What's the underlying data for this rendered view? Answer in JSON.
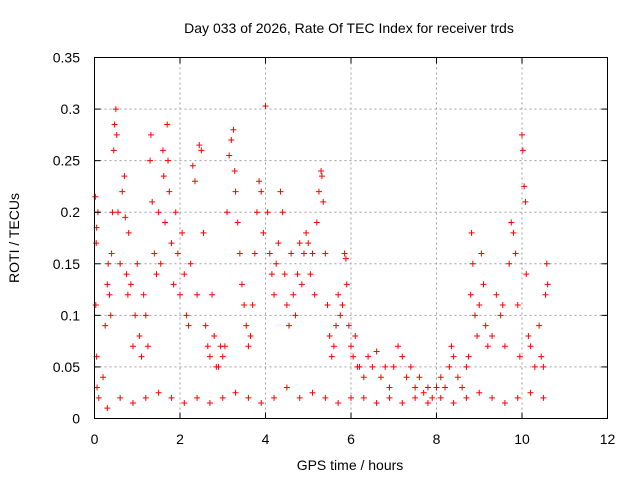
{
  "chart_data": {
    "type": "scatter",
    "title": "Day 033 of 2026, Rate Of TEC Index for receiver trds",
    "xlabel": "GPS time / hours",
    "ylabel": "ROTI / TECUs",
    "xlim": [
      0,
      12
    ],
    "ylim": [
      0,
      0.35
    ],
    "x_ticks": [
      0,
      2,
      4,
      6,
      8,
      10,
      12
    ],
    "x_tick_labels": [
      "0",
      "2",
      "4",
      "6",
      "8",
      "10",
      "12"
    ],
    "y_ticks": [
      0,
      0.05,
      0.1,
      0.15,
      0.2,
      0.25,
      0.3,
      0.35
    ],
    "y_tick_labels": [
      "0",
      "0.05",
      "0.1",
      "0.15",
      "0.2",
      "0.25",
      "0.3",
      "0.35"
    ],
    "grid": true,
    "marker": "plus",
    "color": "#ff0000",
    "series": [
      {
        "name": "",
        "points": [
          [
            0.02,
            0.215
          ],
          [
            0.05,
            0.185
          ],
          [
            0.04,
            0.17
          ],
          [
            0.08,
            0.2
          ],
          [
            0.03,
            0.11
          ],
          [
            0.05,
            0.06
          ],
          [
            0.06,
            0.03
          ],
          [
            0.1,
            0.02
          ],
          [
            0.2,
            0.04
          ],
          [
            0.25,
            0.09
          ],
          [
            0.3,
            0.13
          ],
          [
            0.32,
            0.15
          ],
          [
            0.35,
            0.12
          ],
          [
            0.38,
            0.1
          ],
          [
            0.4,
            0.16
          ],
          [
            0.42,
            0.2
          ],
          [
            0.45,
            0.26
          ],
          [
            0.47,
            0.285
          ],
          [
            0.5,
            0.3
          ],
          [
            0.52,
            0.275
          ],
          [
            0.55,
            0.2
          ],
          [
            0.6,
            0.15
          ],
          [
            0.65,
            0.22
          ],
          [
            0.7,
            0.235
          ],
          [
            0.72,
            0.195
          ],
          [
            0.75,
            0.14
          ],
          [
            0.78,
            0.12
          ],
          [
            0.8,
            0.18
          ],
          [
            0.85,
            0.13
          ],
          [
            0.9,
            0.07
          ],
          [
            0.95,
            0.1
          ],
          [
            1.0,
            0.15
          ],
          [
            1.05,
            0.08
          ],
          [
            1.1,
            0.06
          ],
          [
            1.15,
            0.12
          ],
          [
            1.2,
            0.1
          ],
          [
            1.25,
            0.07
          ],
          [
            1.3,
            0.25
          ],
          [
            1.32,
            0.275
          ],
          [
            1.35,
            0.21
          ],
          [
            1.4,
            0.16
          ],
          [
            1.45,
            0.14
          ],
          [
            1.5,
            0.2
          ],
          [
            1.55,
            0.15
          ],
          [
            1.6,
            0.26
          ],
          [
            1.62,
            0.235
          ],
          [
            1.65,
            0.19
          ],
          [
            1.7,
            0.285
          ],
          [
            1.72,
            0.25
          ],
          [
            1.75,
            0.22
          ],
          [
            1.8,
            0.17
          ],
          [
            1.85,
            0.13
          ],
          [
            1.9,
            0.2
          ],
          [
            1.95,
            0.16
          ],
          [
            2.0,
            0.12
          ],
          [
            2.05,
            0.18
          ],
          [
            2.1,
            0.14
          ],
          [
            2.15,
            0.1
          ],
          [
            2.2,
            0.09
          ],
          [
            2.25,
            0.15
          ],
          [
            2.3,
            0.245
          ],
          [
            2.35,
            0.23
          ],
          [
            2.4,
            0.12
          ],
          [
            2.45,
            0.265
          ],
          [
            2.5,
            0.26
          ],
          [
            2.55,
            0.18
          ],
          [
            2.6,
            0.09
          ],
          [
            2.65,
            0.07
          ],
          [
            2.7,
            0.06
          ],
          [
            2.75,
            0.12
          ],
          [
            2.8,
            0.08
          ],
          [
            2.85,
            0.05
          ],
          [
            2.9,
            0.05
          ],
          [
            2.95,
            0.07
          ],
          [
            3.0,
            0.06
          ],
          [
            3.05,
            0.07
          ],
          [
            3.1,
            0.2
          ],
          [
            3.15,
            0.255
          ],
          [
            3.2,
            0.27
          ],
          [
            3.25,
            0.28
          ],
          [
            3.28,
            0.24
          ],
          [
            3.3,
            0.22
          ],
          [
            3.35,
            0.19
          ],
          [
            3.4,
            0.16
          ],
          [
            3.45,
            0.13
          ],
          [
            3.5,
            0.11
          ],
          [
            3.55,
            0.09
          ],
          [
            3.6,
            0.07
          ],
          [
            3.65,
            0.08
          ],
          [
            3.7,
            0.11
          ],
          [
            3.75,
            0.16
          ],
          [
            3.8,
            0.2
          ],
          [
            3.85,
            0.23
          ],
          [
            3.9,
            0.22
          ],
          [
            3.95,
            0.18
          ],
          [
            4.0,
            0.303
          ],
          [
            4.05,
            0.2
          ],
          [
            4.1,
            0.16
          ],
          [
            4.15,
            0.14
          ],
          [
            4.2,
            0.12
          ],
          [
            4.25,
            0.15
          ],
          [
            4.3,
            0.17
          ],
          [
            4.35,
            0.22
          ],
          [
            4.4,
            0.2
          ],
          [
            4.45,
            0.14
          ],
          [
            4.5,
            0.11
          ],
          [
            4.55,
            0.09
          ],
          [
            4.6,
            0.16
          ],
          [
            4.65,
            0.12
          ],
          [
            4.7,
            0.1
          ],
          [
            4.75,
            0.14
          ],
          [
            4.8,
            0.17
          ],
          [
            4.85,
            0.13
          ],
          [
            4.9,
            0.16
          ],
          [
            4.95,
            0.18
          ],
          [
            5.0,
            0.17
          ],
          [
            5.05,
            0.14
          ],
          [
            5.1,
            0.16
          ],
          [
            5.15,
            0.12
          ],
          [
            5.2,
            0.19
          ],
          [
            5.25,
            0.22
          ],
          [
            5.3,
            0.24
          ],
          [
            5.32,
            0.235
          ],
          [
            5.35,
            0.21
          ],
          [
            5.4,
            0.16
          ],
          [
            5.45,
            0.11
          ],
          [
            5.5,
            0.08
          ],
          [
            5.55,
            0.06
          ],
          [
            5.6,
            0.07
          ],
          [
            5.65,
            0.09
          ],
          [
            5.7,
            0.12
          ],
          [
            5.75,
            0.1
          ],
          [
            5.8,
            0.11
          ],
          [
            5.85,
            0.16
          ],
          [
            5.88,
            0.155
          ],
          [
            5.9,
            0.13
          ],
          [
            5.95,
            0.09
          ],
          [
            6.0,
            0.07
          ],
          [
            6.05,
            0.06
          ],
          [
            6.1,
            0.08
          ],
          [
            6.15,
            0.05
          ],
          [
            6.2,
            0.05
          ],
          [
            6.3,
            0.04
          ],
          [
            6.4,
            0.06
          ],
          [
            6.5,
            0.05
          ],
          [
            6.6,
            0.065
          ],
          [
            6.7,
            0.04
          ],
          [
            6.8,
            0.05
          ],
          [
            6.9,
            0.03
          ],
          [
            7.0,
            0.05
          ],
          [
            7.1,
            0.07
          ],
          [
            7.2,
            0.06
          ],
          [
            7.3,
            0.04
          ],
          [
            7.4,
            0.05
          ],
          [
            7.5,
            0.03
          ],
          [
            7.6,
            0.04
          ],
          [
            7.7,
            0.025
          ],
          [
            7.8,
            0.03
          ],
          [
            7.9,
            0.02
          ],
          [
            8.0,
            0.03
          ],
          [
            8.1,
            0.04
          ],
          [
            8.2,
            0.03
          ],
          [
            8.3,
            0.05
          ],
          [
            8.35,
            0.07
          ],
          [
            8.4,
            0.06
          ],
          [
            8.5,
            0.04
          ],
          [
            8.6,
            0.03
          ],
          [
            8.7,
            0.05
          ],
          [
            8.75,
            0.06
          ],
          [
            8.8,
            0.12
          ],
          [
            8.82,
            0.18
          ],
          [
            8.85,
            0.15
          ],
          [
            8.9,
            0.1
          ],
          [
            8.95,
            0.08
          ],
          [
            9.0,
            0.11
          ],
          [
            9.05,
            0.16
          ],
          [
            9.1,
            0.13
          ],
          [
            9.15,
            0.09
          ],
          [
            9.2,
            0.07
          ],
          [
            9.3,
            0.08
          ],
          [
            9.4,
            0.12
          ],
          [
            9.5,
            0.1
          ],
          [
            9.55,
            0.11
          ],
          [
            9.6,
            0.07
          ],
          [
            9.7,
            0.15
          ],
          [
            9.75,
            0.19
          ],
          [
            9.8,
            0.18
          ],
          [
            9.85,
            0.16
          ],
          [
            9.9,
            0.11
          ],
          [
            9.95,
            0.06
          ],
          [
            10.0,
            0.275
          ],
          [
            10.02,
            0.26
          ],
          [
            10.05,
            0.225
          ],
          [
            10.08,
            0.21
          ],
          [
            10.1,
            0.14
          ],
          [
            10.15,
            0.08
          ],
          [
            10.2,
            0.07
          ],
          [
            10.3,
            0.05
          ],
          [
            10.4,
            0.09
          ],
          [
            10.45,
            0.06
          ],
          [
            10.5,
            0.05
          ],
          [
            10.55,
            0.12
          ],
          [
            10.58,
            0.15
          ],
          [
            10.6,
            0.13
          ],
          [
            0.3,
            0.01
          ],
          [
            0.6,
            0.02
          ],
          [
            0.9,
            0.015
          ],
          [
            1.2,
            0.02
          ],
          [
            1.5,
            0.025
          ],
          [
            1.8,
            0.02
          ],
          [
            2.1,
            0.015
          ],
          [
            2.4,
            0.02
          ],
          [
            2.7,
            0.015
          ],
          [
            3.0,
            0.02
          ],
          [
            3.3,
            0.025
          ],
          [
            3.6,
            0.02
          ],
          [
            3.9,
            0.015
          ],
          [
            4.2,
            0.02
          ],
          [
            4.5,
            0.03
          ],
          [
            4.8,
            0.02
          ],
          [
            5.1,
            0.025
          ],
          [
            5.4,
            0.02
          ],
          [
            5.7,
            0.015
          ],
          [
            6.0,
            0.02
          ],
          [
            6.3,
            0.02
          ],
          [
            6.6,
            0.015
          ],
          [
            6.9,
            0.02
          ],
          [
            7.2,
            0.015
          ],
          [
            7.5,
            0.02
          ],
          [
            7.8,
            0.015
          ],
          [
            8.1,
            0.02
          ],
          [
            8.4,
            0.015
          ],
          [
            8.7,
            0.02
          ],
          [
            9.0,
            0.025
          ],
          [
            9.3,
            0.02
          ],
          [
            9.6,
            0.015
          ],
          [
            9.9,
            0.02
          ],
          [
            10.2,
            0.025
          ],
          [
            10.5,
            0.02
          ]
        ]
      }
    ]
  }
}
